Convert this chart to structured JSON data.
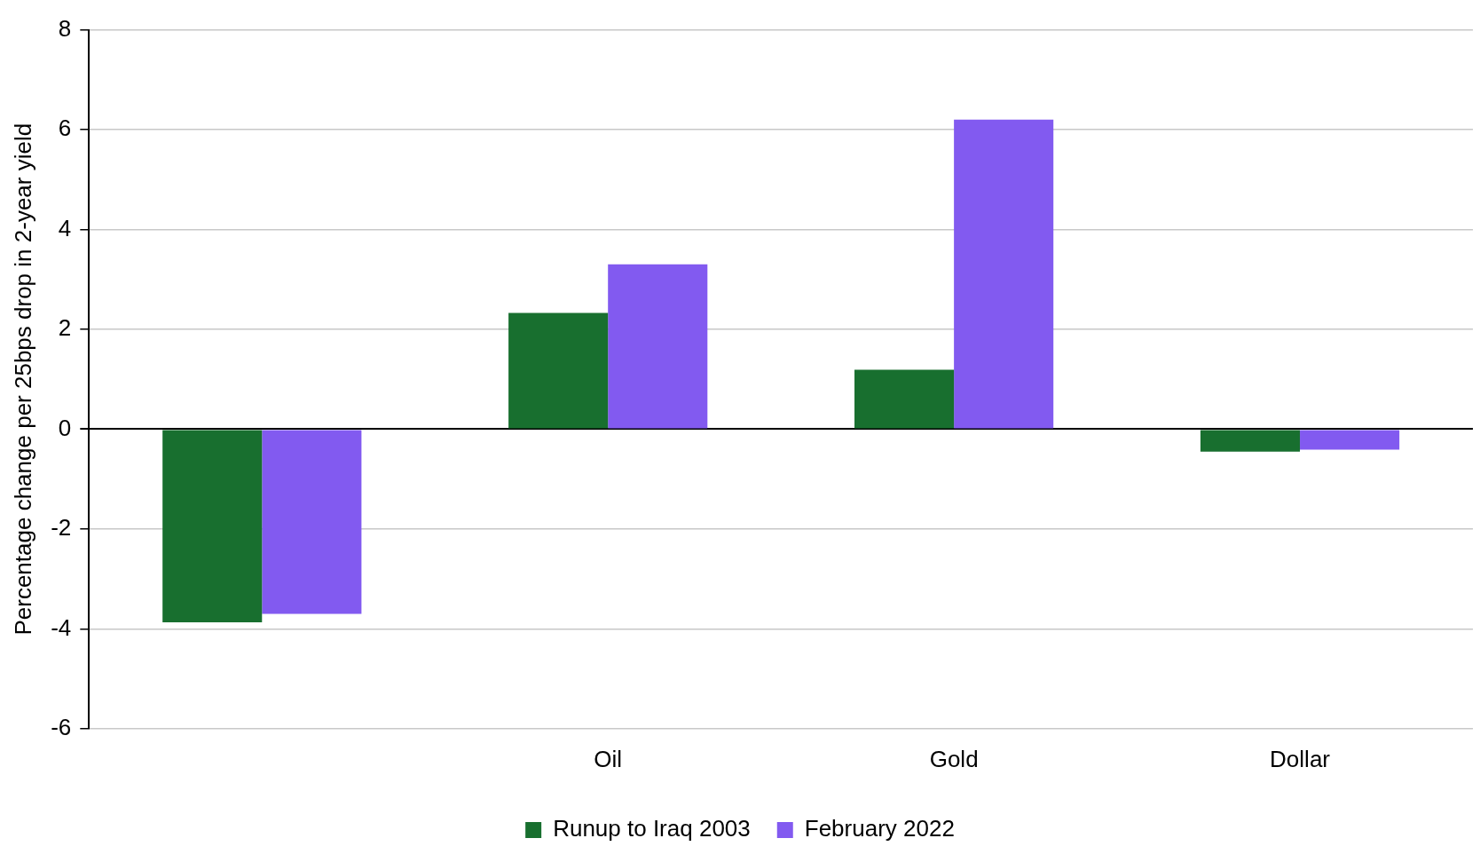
{
  "chart_data": {
    "type": "bar",
    "ylabel": "Percentage change per 25bps drop in 2-year yield",
    "categories": [
      null,
      "Oil",
      "Gold",
      "Dollar"
    ],
    "series": [
      {
        "name": "Runup to Iraq 2003",
        "color": "#186f2f",
        "values": [
          -3.87,
          2.33,
          1.19,
          -0.45
        ]
      },
      {
        "name": "February 2022",
        "color": "#825af0",
        "values": [
          -3.7,
          3.3,
          6.2,
          -0.41
        ]
      }
    ],
    "ylim": [
      -6,
      8
    ],
    "yticks": [
      -6,
      -4,
      -2,
      0,
      2,
      4,
      6,
      8
    ],
    "grid": "y",
    "legend": "bottom"
  }
}
